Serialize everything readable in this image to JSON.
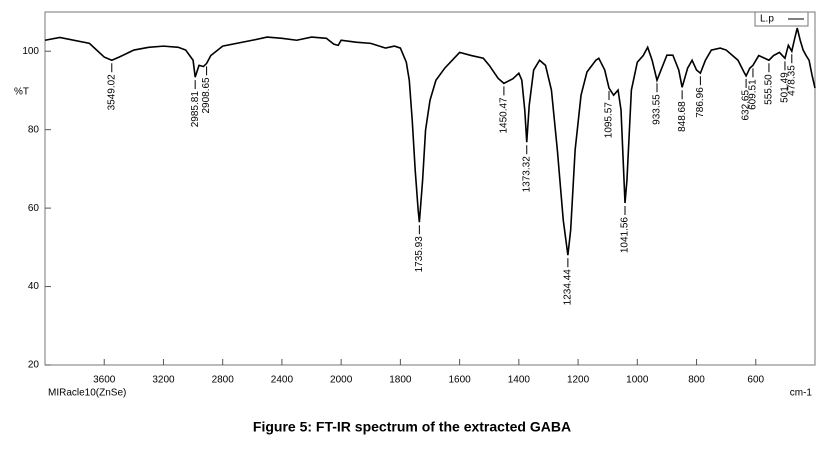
{
  "chart_data": {
    "type": "line",
    "caption": "Figure  5: FT-IR spectrum of the extracted GABA",
    "y_label": "%T",
    "x_label": "cm-1",
    "instrument": "MIRacle10(ZnSe)",
    "x": [
      4000,
      3900,
      3700,
      3600,
      3549.02,
      3500,
      3400,
      3300,
      3200,
      3100,
      3050,
      3000,
      2985.81,
      2960,
      2930,
      2908.65,
      2880,
      2800,
      2600,
      2500,
      2400,
      2300,
      2200,
      2100,
      2050,
      2020,
      2000,
      1950,
      1900,
      1850,
      1820,
      1800,
      1780,
      1770,
      1760,
      1750,
      1740,
      1735.93,
      1725,
      1715,
      1700,
      1680,
      1650,
      1600,
      1560,
      1520,
      1500,
      1470,
      1450.47,
      1420,
      1400,
      1390,
      1380,
      1373.32,
      1365,
      1350,
      1330,
      1310,
      1290,
      1270,
      1250,
      1234.44,
      1225,
      1210,
      1190,
      1170,
      1140,
      1130,
      1110,
      1095.57,
      1080,
      1065,
      1055,
      1041.56,
      1035,
      1020,
      1000,
      980,
      965,
      950,
      933.55,
      920,
      900,
      880,
      860,
      848.68,
      830,
      815,
      800,
      786.96,
      770,
      750,
      720,
      700,
      680,
      660,
      640,
      632.65,
      620,
      609.51,
      590,
      570,
      555.5,
      540,
      520,
      501.49,
      490,
      478.35,
      470,
      460,
      450,
      440,
      430,
      420,
      410,
      400
    ],
    "series": [
      {
        "name": "L.p",
        "color": "#000000",
        "values": [
          102.8,
          103.5,
          102.0,
          98.5,
          97.7,
          98.5,
          100.3,
          101.0,
          101.3,
          101.0,
          100.3,
          97.7,
          93.4,
          96.4,
          96.1,
          96.9,
          98.9,
          101.3,
          102.8,
          103.6,
          103.3,
          102.8,
          103.6,
          103.3,
          101.8,
          101.5,
          102.8,
          102.3,
          102.0,
          100.8,
          101.3,
          100.8,
          97.2,
          92.6,
          82.4,
          69.7,
          59.5,
          56.4,
          67.1,
          79.9,
          87.5,
          92.6,
          95.7,
          99.7,
          98.9,
          98.2,
          96.4,
          93.1,
          91.8,
          93.0,
          94.4,
          92.6,
          85.0,
          76.8,
          86.2,
          95.2,
          97.7,
          96.4,
          90.1,
          74.8,
          56.9,
          48.0,
          54.4,
          74.8,
          88.8,
          94.7,
          97.7,
          98.2,
          95.2,
          90.6,
          88.8,
          90.1,
          85.0,
          61.3,
          67.1,
          90.1,
          97.2,
          98.9,
          101.0,
          97.7,
          92.6,
          95.2,
          99.0,
          99.0,
          95.2,
          90.8,
          95.7,
          97.7,
          95.2,
          94.4,
          97.7,
          100.3,
          100.8,
          100.3,
          99.0,
          97.7,
          94.7,
          93.7,
          95.7,
          96.4,
          98.9,
          98.2,
          97.7,
          98.9,
          99.7,
          98.2,
          101.5,
          100.0,
          102.8,
          105.9,
          102.8,
          100.3,
          98.9,
          97.7,
          93.9,
          90.6
        ]
      }
    ],
    "xlim": [
      4000,
      400
    ],
    "xticks": [
      3600,
      3200,
      2800,
      2400,
      2000,
      1800,
      1600,
      1400,
      1200,
      1000,
      800,
      600
    ],
    "ylim": [
      20,
      110
    ],
    "yticks": [
      20,
      40,
      60,
      80,
      100
    ],
    "peaks": [
      {
        "x": 3549.02,
        "label": "3549.02"
      },
      {
        "x": 2985.81,
        "label": "2985.81"
      },
      {
        "x": 2908.65,
        "label": "2908.65"
      },
      {
        "x": 1735.93,
        "label": "1735.93"
      },
      {
        "x": 1450.47,
        "label": "1450.47"
      },
      {
        "x": 1373.32,
        "label": "1373.32"
      },
      {
        "x": 1234.44,
        "label": "1234.44"
      },
      {
        "x": 1095.57,
        "label": "1095.57"
      },
      {
        "x": 1041.56,
        "label": "1041.56"
      },
      {
        "x": 933.55,
        "label": "933.55"
      },
      {
        "x": 848.68,
        "label": "848.68"
      },
      {
        "x": 786.96,
        "label": "786.96"
      },
      {
        "x": 632.65,
        "label": "632.65"
      },
      {
        "x": 609.51,
        "label": "609.51"
      },
      {
        "x": 555.5,
        "label": "555.50"
      },
      {
        "x": 501.49,
        "label": "501.49"
      },
      {
        "x": 478.35,
        "label": "478.35"
      }
    ]
  }
}
